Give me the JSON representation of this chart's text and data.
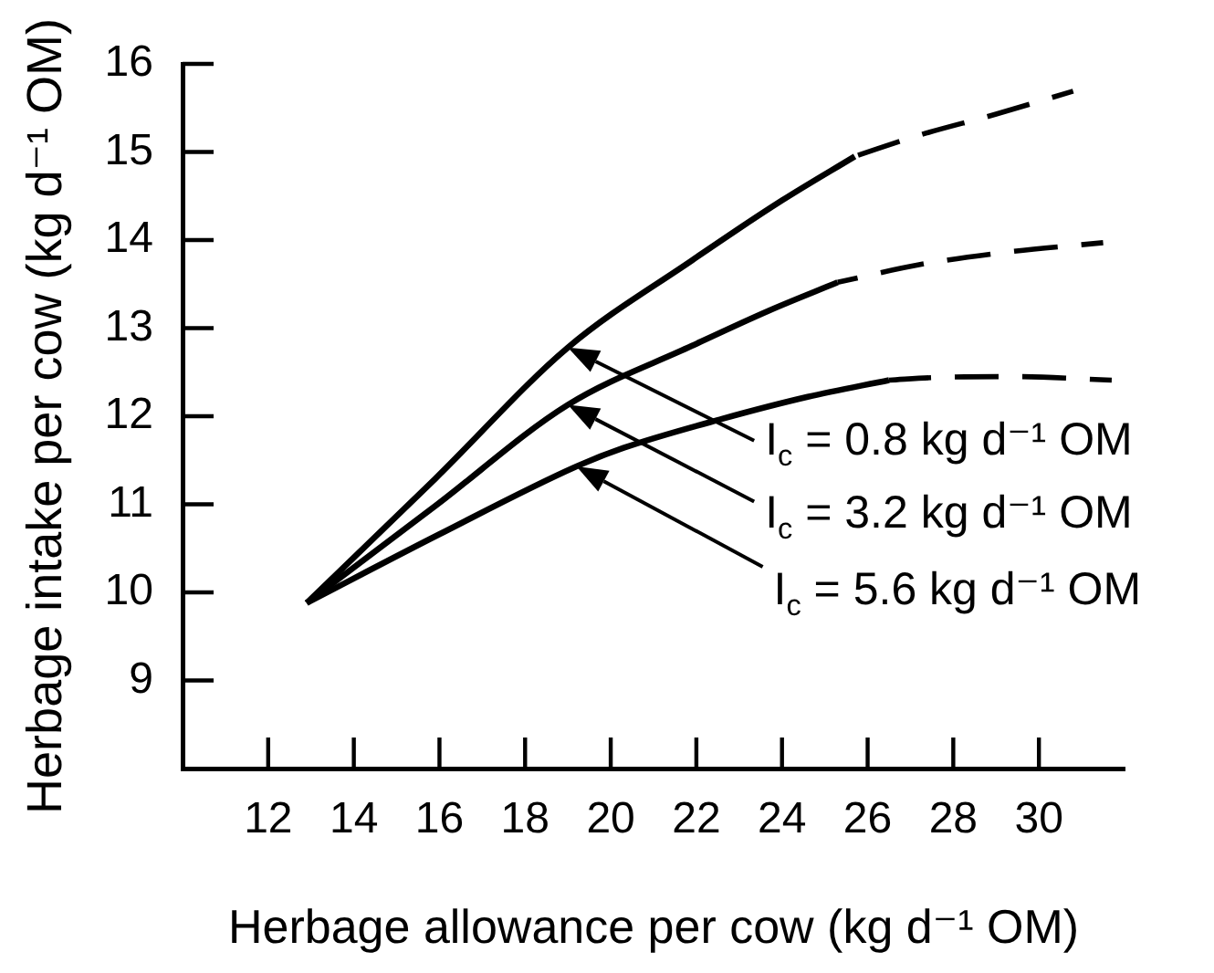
{
  "chart_data": {
    "type": "line",
    "xlabel": "Herbage allowance per cow (kg d⁻¹ OM)",
    "ylabel": "Herbage intake per cow (kg d⁻¹ OM)",
    "xlim": [
      10,
      32
    ],
    "xticks": [
      12,
      14,
      16,
      18,
      20,
      22,
      24,
      26,
      28,
      30
    ],
    "ylim": [
      8,
      16
    ],
    "yticks": [
      9,
      10,
      11,
      12,
      13,
      14,
      15,
      16
    ],
    "series": [
      {
        "color": "#000000",
        "line_style": "solid",
        "x": [
          12.9,
          16.0,
          19.2,
          20.3,
          22.6,
          24.6,
          26.5
        ],
        "values": [
          9.88,
          10.66,
          11.43,
          11.64,
          11.97,
          12.22,
          12.41
        ]
      },
      {
        "color": "#000000",
        "line_style": "dashed",
        "x": [
          26.5,
          27.6,
          29.4,
          31.7
        ],
        "values": [
          12.41,
          12.44,
          12.45,
          12.41
        ]
      },
      {
        "color": "#000000",
        "line_style": "solid",
        "x": [
          12.9,
          15.9,
          19.0,
          21.9,
          23.7,
          25.3
        ],
        "values": [
          9.88,
          10.98,
          12.13,
          12.8,
          13.2,
          13.52
        ]
      },
      {
        "color": "#000000",
        "line_style": "dashed",
        "x": [
          25.3,
          27.2,
          29.2,
          31.5
        ],
        "values": [
          13.52,
          13.72,
          13.86,
          13.97
        ]
      },
      {
        "color": "#000000",
        "line_style": "solid",
        "x": [
          12.9,
          15.9,
          19.0,
          21.9,
          24.0,
          25.7
        ],
        "values": [
          9.88,
          11.29,
          12.78,
          13.77,
          14.45,
          14.95
        ]
      },
      {
        "color": "#000000",
        "line_style": "dashed",
        "x": [
          25.7,
          27.2,
          29.0,
          30.8
        ],
        "values": [
          14.95,
          15.19,
          15.43,
          15.69
        ]
      }
    ],
    "annotations": [
      "I$_{c}$ = 0.8 kg d⁻¹ OM",
      "I$_{c}$ = 3.2 kg d⁻¹ OM",
      "I$_{c}$ = 5.6 kg d⁻¹ OM"
    ]
  }
}
